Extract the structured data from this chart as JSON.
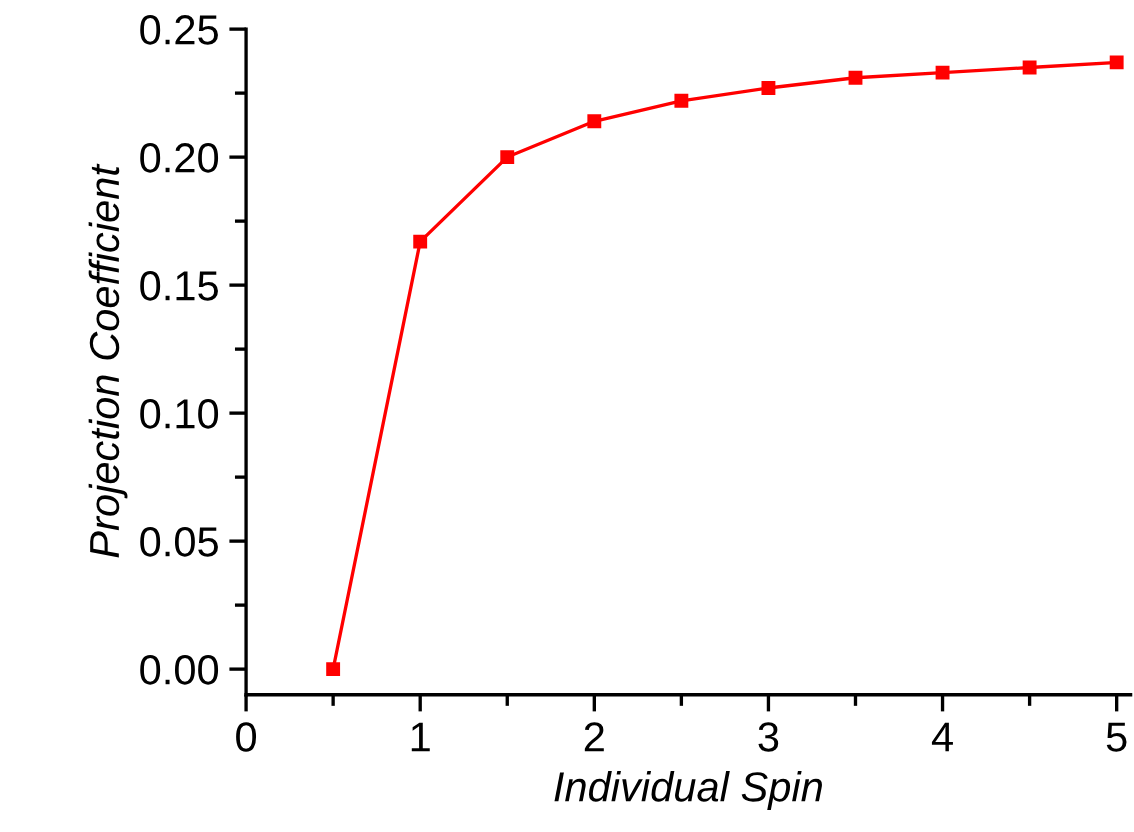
{
  "chart_data": {
    "type": "line",
    "xlabel": "Individual Spin",
    "ylabel": "Projection Coefficient",
    "x": [
      0.5,
      1,
      1.5,
      2,
      2.5,
      3,
      3.5,
      4,
      4.5,
      5
    ],
    "series": [
      {
        "color": "#ff0000",
        "values": [
          0,
          0.167,
          0.2,
          0.214,
          0.222,
          0.227,
          0.231,
          0.233,
          0.235,
          0.237
        ]
      }
    ],
    "xlim": [
      0,
      5.08
    ],
    "ylim": [
      -0.01,
      0.25
    ],
    "xticks": [
      0,
      1,
      2,
      3,
      4,
      5
    ],
    "yticks": [
      {
        "value": 0,
        "label": "0.00"
      },
      {
        "value": 0.05,
        "label": "0.05"
      },
      {
        "value": 0.1,
        "label": "0.10"
      },
      {
        "value": 0.15,
        "label": "0.15"
      },
      {
        "value": 0.2,
        "label": "0.20"
      },
      {
        "value": 0.25,
        "label": "0.25"
      }
    ],
    "marker": "square",
    "line_style": "solid",
    "grid": false
  }
}
